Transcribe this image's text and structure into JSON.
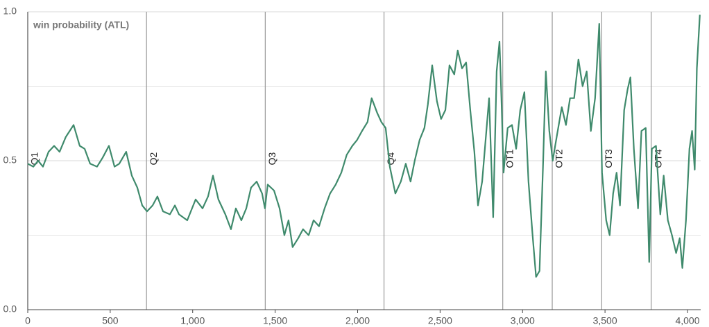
{
  "chart_data": {
    "type": "line",
    "title": "win probability (ATL)",
    "x": [
      0,
      34,
      63,
      92,
      126,
      160,
      193,
      231,
      278,
      315,
      345,
      378,
      420,
      454,
      492,
      526,
      555,
      597,
      631,
      664,
      694,
      723,
      757,
      786,
      820,
      862,
      892,
      917,
      967,
      1018,
      1060,
      1093,
      1123,
      1156,
      1198,
      1232,
      1262,
      1295,
      1325,
      1354,
      1388,
      1421,
      1438,
      1455,
      1493,
      1527,
      1556,
      1581,
      1606,
      1640,
      1669,
      1703,
      1733,
      1766,
      1800,
      1833,
      1867,
      1901,
      1934,
      1968,
      1997,
      2027,
      2060,
      2085,
      2119,
      2144,
      2170,
      2195,
      2229,
      2262,
      2292,
      2321,
      2346,
      2376,
      2405,
      2426,
      2452,
      2481,
      2506,
      2532,
      2557,
      2586,
      2607,
      2633,
      2658,
      2683,
      2708,
      2730,
      2755,
      2776,
      2797,
      2822,
      2843,
      2860,
      2872,
      2885,
      2910,
      2936,
      2961,
      2986,
      3011,
      3036,
      3061,
      3082,
      3103,
      3124,
      3141,
      3162,
      3183,
      3204,
      3238,
      3263,
      3288,
      3313,
      3339,
      3364,
      3389,
      3414,
      3440,
      3465,
      3482,
      3507,
      3528,
      3549,
      3570,
      3591,
      3616,
      3637,
      3654,
      3675,
      3700,
      3721,
      3747,
      3768,
      3784,
      3809,
      3835,
      3856,
      3881,
      3906,
      3931,
      3953,
      3969,
      3991,
      4012,
      4028,
      4044,
      4057,
      4075
    ],
    "series": [
      {
        "color": "#3f8a6c",
        "values": [
          0.49,
          0.48,
          0.5,
          0.48,
          0.53,
          0.55,
          0.53,
          0.58,
          0.62,
          0.55,
          0.54,
          0.49,
          0.48,
          0.51,
          0.55,
          0.48,
          0.49,
          0.53,
          0.45,
          0.41,
          0.35,
          0.33,
          0.35,
          0.38,
          0.33,
          0.32,
          0.35,
          0.32,
          0.3,
          0.37,
          0.34,
          0.38,
          0.45,
          0.37,
          0.32,
          0.27,
          0.34,
          0.3,
          0.34,
          0.41,
          0.43,
          0.39,
          0.34,
          0.42,
          0.4,
          0.34,
          0.25,
          0.3,
          0.21,
          0.24,
          0.27,
          0.25,
          0.3,
          0.28,
          0.34,
          0.39,
          0.42,
          0.46,
          0.52,
          0.55,
          0.57,
          0.6,
          0.63,
          0.71,
          0.66,
          0.63,
          0.61,
          0.48,
          0.39,
          0.43,
          0.49,
          0.43,
          0.5,
          0.57,
          0.61,
          0.69,
          0.82,
          0.7,
          0.64,
          0.67,
          0.82,
          0.79,
          0.87,
          0.81,
          0.83,
          0.67,
          0.53,
          0.35,
          0.43,
          0.57,
          0.71,
          0.31,
          0.8,
          0.9,
          0.71,
          0.46,
          0.61,
          0.62,
          0.54,
          0.67,
          0.73,
          0.43,
          0.25,
          0.11,
          0.13,
          0.48,
          0.8,
          0.6,
          0.5,
          0.57,
          0.68,
          0.62,
          0.71,
          0.71,
          0.84,
          0.75,
          0.8,
          0.6,
          0.71,
          0.96,
          0.46,
          0.3,
          0.25,
          0.39,
          0.46,
          0.35,
          0.67,
          0.74,
          0.78,
          0.54,
          0.34,
          0.6,
          0.61,
          0.16,
          0.54,
          0.55,
          0.32,
          0.45,
          0.3,
          0.25,
          0.19,
          0.24,
          0.14,
          0.3,
          0.54,
          0.6,
          0.47,
          0.81,
          0.99
        ]
      }
    ],
    "xlim": [
      0,
      4080
    ],
    "ylim": [
      0,
      1
    ],
    "xticks": [
      0,
      500,
      {
        "value": 1000,
        "label": "1,000"
      },
      {
        "value": 1500,
        "label": "1,500"
      },
      {
        "value": 2000,
        "label": "2,000"
      },
      {
        "value": 2500,
        "label": "2,500"
      },
      {
        "value": 3000,
        "label": "3,000"
      },
      {
        "value": 3500,
        "label": "3,500"
      },
      {
        "value": 4000,
        "label": "4,000"
      }
    ],
    "yticks": [
      {
        "value": 0,
        "label": "0.0"
      },
      0.5,
      {
        "value": 1,
        "label": "1.0"
      }
    ],
    "y_minor_grid": [
      0.25,
      0.75
    ],
    "period_markers": [
      {
        "x": 0,
        "label": "Q1"
      },
      {
        "x": 720,
        "label": "Q2"
      },
      {
        "x": 1440,
        "label": "Q3"
      },
      {
        "x": 2160,
        "label": "Q4"
      },
      {
        "x": 2880,
        "label": "OT1"
      },
      {
        "x": 3180,
        "label": "OT2"
      },
      {
        "x": 3480,
        "label": "OT3"
      },
      {
        "x": 3780,
        "label": "OT4"
      }
    ],
    "grid": true
  }
}
